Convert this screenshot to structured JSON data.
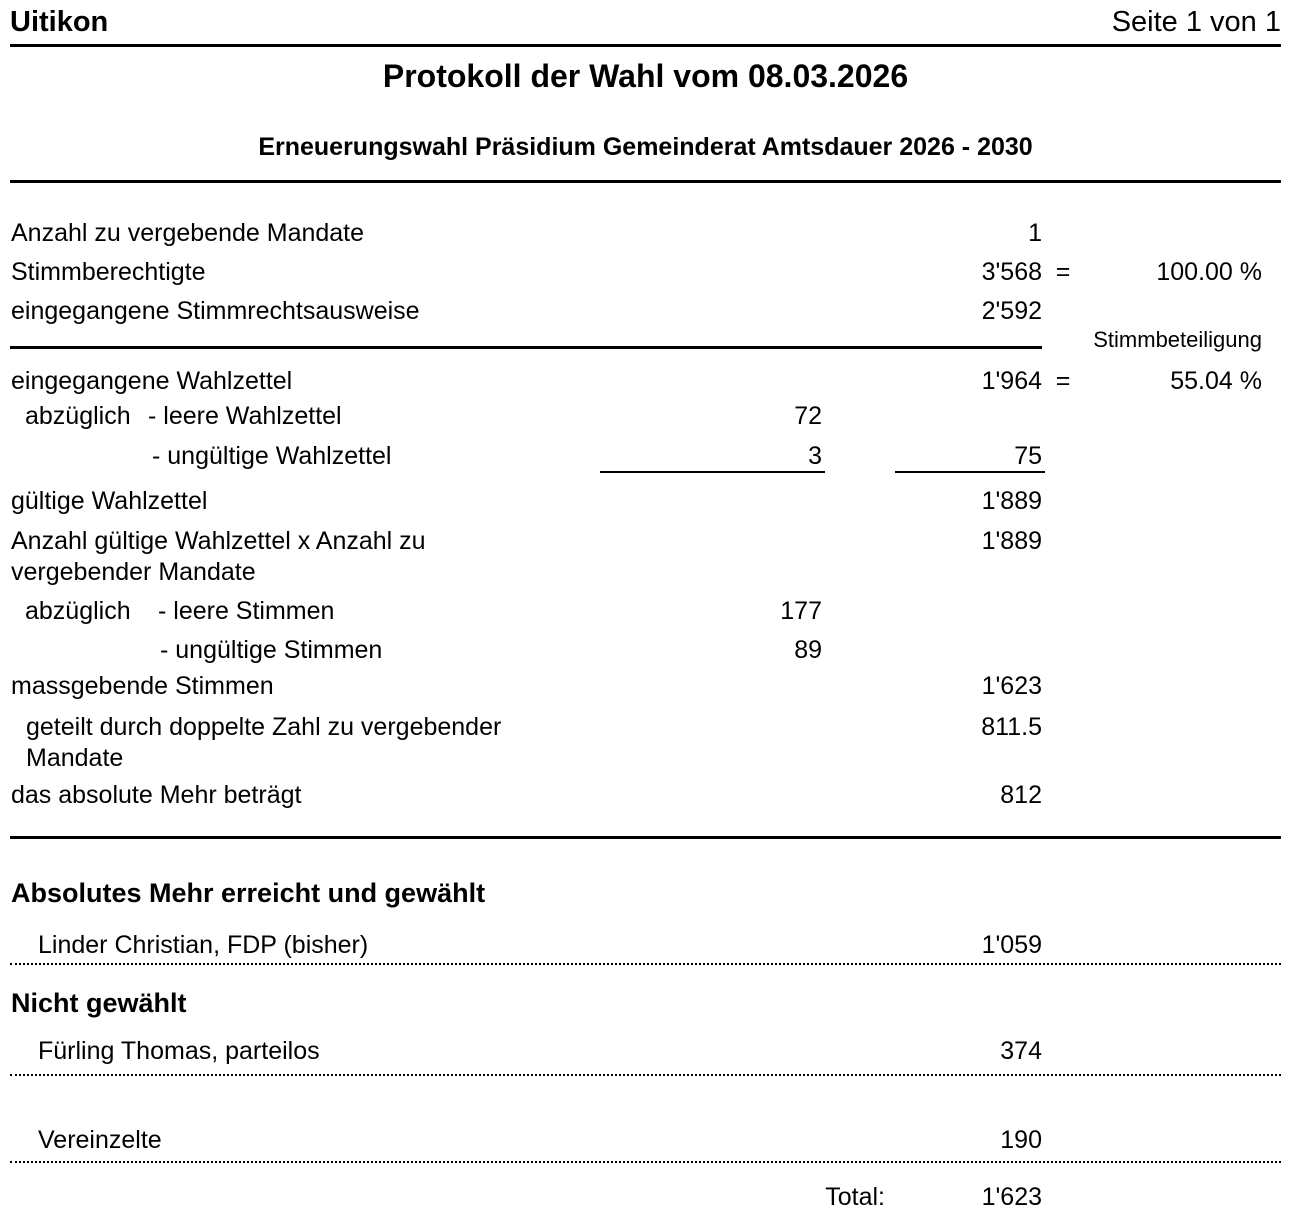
{
  "header": {
    "left": "Uitikon",
    "right": "Seite 1 von 1"
  },
  "title": "Protokoll der Wahl vom 08.03.2026",
  "subtitle": "Erneuerungswahl Präsidium Gemeinderat Amtsdauer 2026 - 2030",
  "participation_note": "Stimmbeteiligung",
  "stats": {
    "rows": [
      {
        "label": "Anzahl zu vergebende Mandate",
        "right": "1"
      },
      {
        "label": "Stimmberechtigte",
        "right": "3'568",
        "eq": "=",
        "pct": "100.00 %"
      },
      {
        "label": "eingegangene Stimmrechtsausweise",
        "right": "2'592"
      },
      {
        "label": "eingegangene Wahlzettel",
        "right": "1'964",
        "eq": "=",
        "pct": "55.04 %"
      },
      {
        "prefix": "abzüglich",
        "item": "- leere Wahlzettel",
        "mid": "72"
      },
      {
        "item": "- ungültige Wahlzettel",
        "mid": "3",
        "right": "75"
      },
      {
        "label": "gültige Wahlzettel",
        "right": "1'889"
      },
      {
        "label": "Anzahl gültige Wahlzettel x Anzahl zu",
        "label2": "vergebender Mandate",
        "right": "1'889"
      },
      {
        "prefix": "abzüglich",
        "item": "- leere Stimmen",
        "mid": "177"
      },
      {
        "item": "- ungültige Stimmen",
        "mid": "89"
      },
      {
        "label": "massgebende Stimmen",
        "right": "1'623"
      },
      {
        "label": "geteilt durch doppelte Zahl zu vergebender",
        "label2": "Mandate",
        "right": "811.5"
      },
      {
        "label": "das absolute Mehr beträgt",
        "right": "812"
      }
    ]
  },
  "results": {
    "elected_heading": "Absolutes Mehr erreicht und gewählt",
    "elected": [
      {
        "name": "Linder Christian, FDP (bisher)",
        "votes": "1'059"
      }
    ],
    "not_elected_heading": "Nicht gewählt",
    "not_elected": [
      {
        "name": "Fürling Thomas, parteilos",
        "votes": "374"
      }
    ],
    "scattered": {
      "name": "Vereinzelte",
      "votes": "190"
    },
    "total_label": "Total:",
    "total_value": "1'623"
  }
}
